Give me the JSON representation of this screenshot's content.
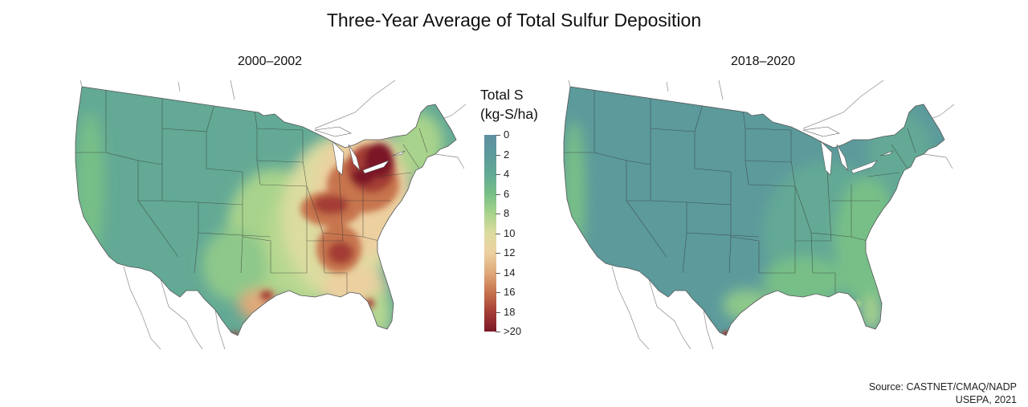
{
  "title": "Three-Year Average of Total Sulfur Deposition",
  "maps": {
    "left": {
      "period": "2000–2002"
    },
    "right": {
      "period": "2018–2020"
    }
  },
  "legend": {
    "title_line1": "Total S",
    "title_line2": "(kg-S/ha)",
    "labels": [
      "0",
      "2",
      "4",
      "6",
      "8",
      "10",
      "12",
      "14",
      "16",
      "18",
      ">20"
    ],
    "colors": [
      "#5f8fa0",
      "#5c9a9c",
      "#63a995",
      "#77bf87",
      "#a8d38c",
      "#dcdca0",
      "#ecd0a0",
      "#dfa97a",
      "#c7744d",
      "#a43e35",
      "#7a1927"
    ]
  },
  "source": {
    "line1": "Source: CASTNET/CMAQ/NADP",
    "line2": "USEPA, 2021"
  }
}
